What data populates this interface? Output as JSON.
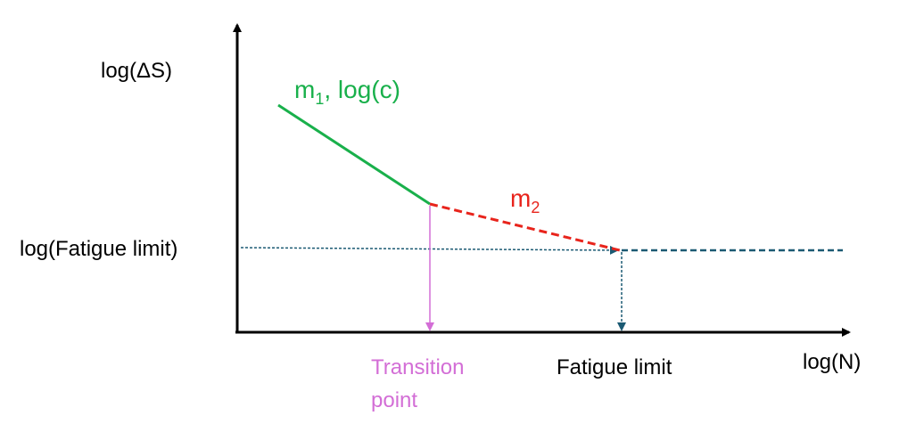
{
  "axes": {
    "y_label": "log(ΔS)",
    "x_label": "log(N)"
  },
  "segments": {
    "first_slope": {
      "symbol": "m",
      "subscript": "1",
      "suffix": ", log(c)"
    },
    "second_slope": {
      "symbol": "m",
      "subscript": "2"
    }
  },
  "levels": {
    "fatigue_limit_level": "log(Fatigue limit)"
  },
  "markers": {
    "transition_point": {
      "lines": [
        "Transition",
        "point"
      ]
    },
    "fatigue_limit": "Fatigue limit"
  }
}
